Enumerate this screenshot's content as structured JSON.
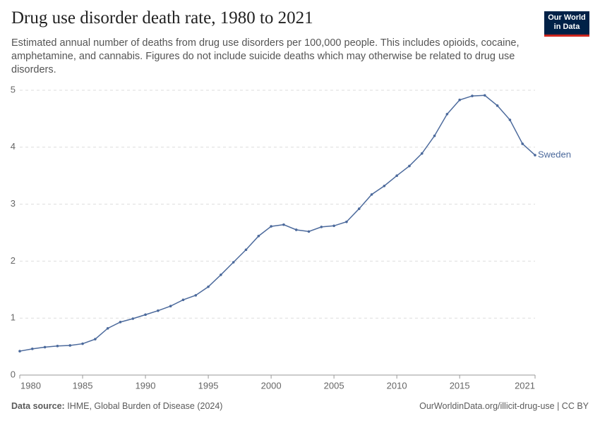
{
  "logo": [
    "Our World",
    "in Data"
  ],
  "footer": {
    "source_label": "Data source:",
    "source": "IHME, Global Burden of Disease (2024)",
    "url": "OurWorldinData.org/illicit-drug-use | CC BY"
  },
  "chart_data": {
    "type": "line",
    "title": "Drug use disorder death rate, 1980 to 2021",
    "subtitle": "Estimated annual number of deaths from drug use disorders per 100,000 people. This includes opioids, cocaine, amphetamine, and cannabis. Figures do not include suicide deaths which may otherwise be related to drug use disorders.",
    "x": [
      1980,
      1981,
      1982,
      1983,
      1984,
      1985,
      1986,
      1987,
      1988,
      1989,
      1990,
      1991,
      1992,
      1993,
      1994,
      1995,
      1996,
      1997,
      1998,
      1999,
      2000,
      2001,
      2002,
      2003,
      2004,
      2005,
      2006,
      2007,
      2008,
      2009,
      2010,
      2011,
      2012,
      2013,
      2014,
      2015,
      2016,
      2017,
      2018,
      2019,
      2020,
      2021
    ],
    "series": [
      {
        "name": "Sweden",
        "color": "#4c6a9c",
        "values": [
          0.42,
          0.46,
          0.49,
          0.51,
          0.52,
          0.55,
          0.63,
          0.82,
          0.93,
          0.99,
          1.06,
          1.13,
          1.21,
          1.32,
          1.4,
          1.55,
          1.76,
          1.98,
          2.2,
          2.44,
          2.61,
          2.64,
          2.55,
          2.52,
          2.6,
          2.62,
          2.69,
          2.92,
          3.17,
          3.32,
          3.5,
          3.67,
          3.89,
          4.2,
          4.58,
          4.83,
          4.9,
          4.91,
          4.73,
          4.48,
          4.06,
          3.86
        ]
      }
    ],
    "xlim": [
      1980,
      2021
    ],
    "xticks": [
      1980,
      1985,
      1990,
      1995,
      2000,
      2005,
      2010,
      2015,
      2021
    ],
    "ylim": [
      0,
      5
    ],
    "yticks": [
      0,
      1,
      2,
      3,
      4,
      5
    ],
    "grid": true
  }
}
